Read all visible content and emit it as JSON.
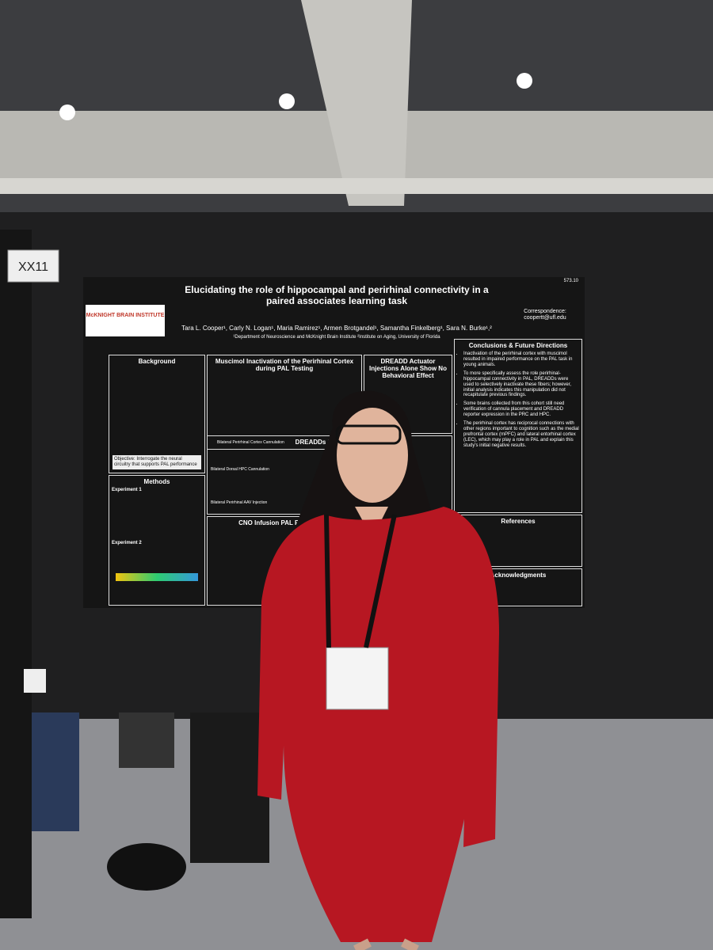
{
  "booth_sign": "XX11",
  "poster": {
    "id": "573.10",
    "title": "Elucidating the role of hippocampal and perirhinal connectivity in a paired associates learning task",
    "correspondence_label": "Correspondence:",
    "correspondence_email": "coopertt@ufl.edu",
    "authors": "Tara L. Cooper¹, Carly N. Logan¹, Maria Ramirez¹, Armen Brotgandel¹, Samantha Finkelberg¹, Sara N. Burke¹,²",
    "affiliation": "¹Department of Neuroscience and McKnight Brain Institute ²Institute on Aging, University of Florida",
    "logo": "McKNIGHT BRAIN INSTITUTE",
    "background": {
      "heading": "Background",
      "objective": "Objective: Interrogate the neural circuitry that supports PAL performance"
    },
    "methods": {
      "heading": "Methods",
      "experiment_1": "Experiment 1",
      "experiment_2": "Experiment 2"
    },
    "results": {
      "muscimol": "Muscimol Inactivation of the Perirhinal Cortex during PAL Testing",
      "dreadd_alone": "DREADD Actuator Injections Alone Show No Behavioral Effect",
      "dreadd_inhibition": "DREADDs Inhibition of",
      "cno": "CNO Infusion PAL Performance",
      "bilateral_prc": "Bilateral Perirhinal Cortex Cannulation",
      "bilateral_hpc": "Bilateral Dorsal HPC Cannulation",
      "bilateral_aav": "Bilateral Perirhinal AAV Injection"
    },
    "conclusions": {
      "heading": "Conclusions & Future Directions",
      "bullets": [
        "Inactivation of the perirhinal cortex with muscimol resulted in impaired performance on the PAL task in young animals.",
        "To more specifically assess the role perirhinal-hippocampal connectivity in PAL, DREADDs were used to selectively inactivate these fibers; however, initial analysis indicates this manipulation did not recapitulate previous findings.",
        "Some brains collected from this cohort still need verification of cannula placement and DREADD reporter expression in the PRC and HPC.",
        "The perirhinal cortex has reciprocal connections with other regions important to cognition such as the medial prefrontal cortex (mPFC) and lateral entorhinal cortex (LEC), which may play a role in PAL and explain this study's initial negative results."
      ]
    },
    "references_heading": "References",
    "acknowledgments_heading": "Acknowledgments"
  }
}
